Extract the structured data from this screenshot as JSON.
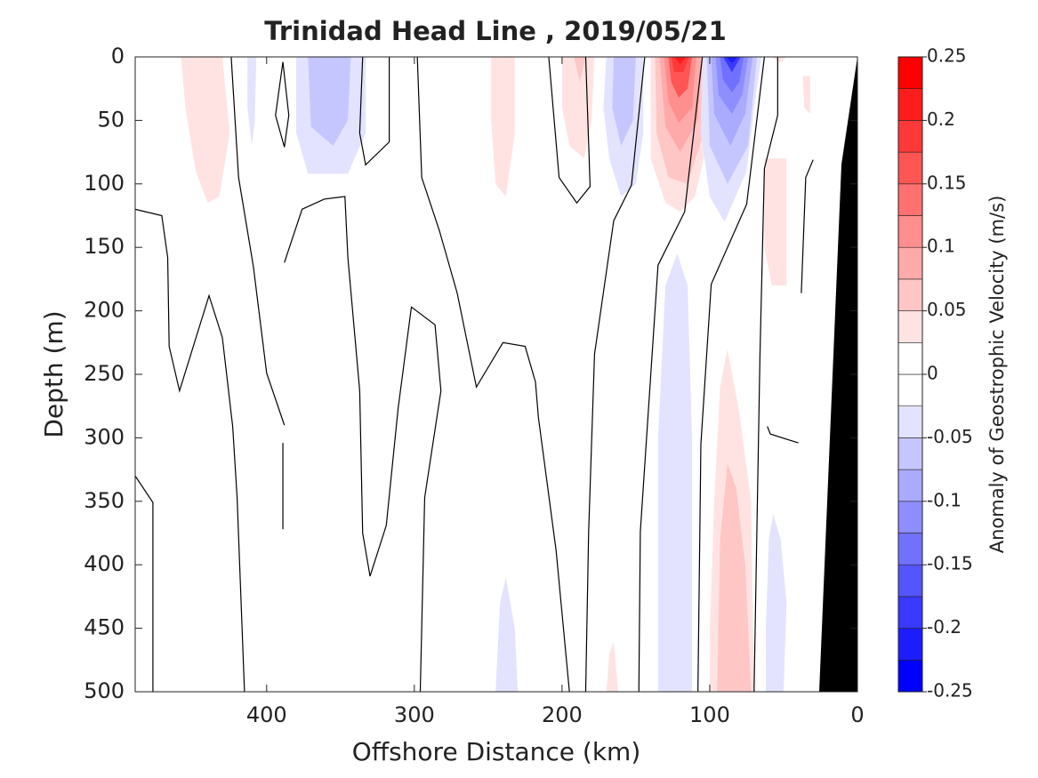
{
  "chart_data": {
    "type": "contour",
    "title": "Trinidad Head Line , 2019/05/21",
    "x_label": "Offshore Distance (km)",
    "y_label": "Depth (m)",
    "xlim": [
      489,
      0
    ],
    "xticks": [
      400,
      300,
      200,
      100,
      0
    ],
    "ylim": [
      500,
      0
    ],
    "yticks": [
      0,
      50,
      100,
      150,
      200,
      250,
      300,
      350,
      400,
      450,
      500
    ],
    "colorbar": {
      "label": "Anomaly of Geostrophic Velocity (m/s)",
      "levels": [
        -0.25,
        -0.225,
        -0.2,
        -0.175,
        -0.15,
        -0.125,
        -0.1,
        -0.075,
        -0.05,
        -0.025,
        0,
        0.025,
        0.05,
        0.075,
        0.1,
        0.125,
        0.15,
        0.175,
        0.2,
        0.225,
        0.25
      ],
      "colors": [
        "#0000ff",
        "#1c1cff",
        "#3939ff",
        "#5555ff",
        "#7171ff",
        "#8e8eff",
        "#aaaaff",
        "#c6c6ff",
        "#e3e3ff",
        "#ffffff",
        "#ffffff",
        "#ffe3e3",
        "#ffc6c6",
        "#ffaaaa",
        "#ff8e8e",
        "#ff7171",
        "#ff5555",
        "#ff3939",
        "#ff1c1c",
        "#ff0000"
      ],
      "ticks": [
        -0.25,
        -0.2,
        -0.15,
        -0.1,
        -0.05,
        0,
        0.05,
        0.1,
        0.15,
        0.2,
        0.25
      ]
    },
    "regions": [
      {
        "value": 0.03,
        "x": [
          458,
          430,
          425,
          432,
          440,
          448,
          455
        ],
        "y": [
          0,
          0,
          60,
          110,
          115,
          90,
          40
        ]
      },
      {
        "value": -0.03,
        "x": [
          413,
          407,
          408,
          410,
          413
        ],
        "y": [
          0,
          0,
          50,
          70,
          40
        ]
      },
      {
        "value": -0.03,
        "x": [
          380,
          333,
          333,
          345,
          372,
          380
        ],
        "y": [
          0,
          0,
          60,
          92,
          92,
          60
        ]
      },
      {
        "value": -0.06,
        "x": [
          372,
          343,
          345,
          355,
          370
        ],
        "y": [
          0,
          0,
          50,
          70,
          55
        ]
      },
      {
        "value": 0.03,
        "x": [
          248,
          232,
          232,
          238,
          245,
          248
        ],
        "y": [
          0,
          0,
          60,
          110,
          100,
          50
        ]
      },
      {
        "value": 0.03,
        "x": [
          200,
          178,
          180,
          185,
          195,
          200
        ],
        "y": [
          0,
          0,
          50,
          80,
          70,
          40
        ]
      },
      {
        "value": 0.06,
        "x": [
          192,
          184,
          188
        ],
        "y": [
          0,
          0,
          20
        ]
      },
      {
        "value": -0.03,
        "x": [
          170,
          145,
          145,
          150,
          160,
          168,
          172
        ],
        "y": [
          0,
          0,
          60,
          100,
          110,
          80,
          40
        ]
      },
      {
        "value": -0.06,
        "x": [
          165,
          150,
          152,
          160,
          166
        ],
        "y": [
          0,
          0,
          50,
          70,
          40
        ]
      },
      {
        "value": 0.03,
        "x": [
          140,
          100,
          100,
          110,
          120,
          130,
          140
        ],
        "y": [
          0,
          0,
          60,
          110,
          122,
          115,
          80
        ]
      },
      {
        "value": 0.06,
        "x": [
          137,
          103,
          104,
          115,
          128,
          136
        ],
        "y": [
          0,
          0,
          60,
          100,
          95,
          60
        ]
      },
      {
        "value": 0.09,
        "x": [
          134,
          106,
          108,
          120,
          130
        ],
        "y": [
          0,
          0,
          50,
          75,
          55
        ]
      },
      {
        "value": 0.12,
        "x": [
          131,
          109,
          112,
          121,
          128
        ],
        "y": [
          0,
          0,
          40,
          52,
          35
        ]
      },
      {
        "value": 0.15,
        "x": [
          128,
          112,
          115,
          121,
          126
        ],
        "y": [
          0,
          0,
          25,
          32,
          20
        ]
      },
      {
        "value": 0.18,
        "x": [
          126,
          114,
          118,
          124
        ],
        "y": [
          0,
          0,
          12,
          12
        ]
      },
      {
        "value": 0.21,
        "x": [
          124,
          116,
          120
        ],
        "y": [
          0,
          0,
          6
        ]
      },
      {
        "value": -0.03,
        "x": [
          105,
          65,
          70,
          75,
          90,
          100,
          106
        ],
        "y": [
          0,
          0,
          40,
          90,
          130,
          110,
          60
        ]
      },
      {
        "value": -0.06,
        "x": [
          102,
          68,
          74,
          88,
          100
        ],
        "y": [
          0,
          0,
          70,
          100,
          70
        ]
      },
      {
        "value": -0.09,
        "x": [
          99,
          71,
          76,
          86,
          97
        ],
        "y": [
          0,
          0,
          45,
          70,
          45
        ]
      },
      {
        "value": -0.12,
        "x": [
          96,
          74,
          78,
          85,
          94
        ],
        "y": [
          0,
          0,
          30,
          45,
          30
        ]
      },
      {
        "value": -0.15,
        "x": [
          93,
          77,
          80,
          85,
          91
        ],
        "y": [
          0,
          0,
          20,
          28,
          18
        ]
      },
      {
        "value": -0.18,
        "x": [
          91,
          79,
          85
        ],
        "y": [
          0,
          0,
          12
        ]
      },
      {
        "value": -0.21,
        "x": [
          89,
          81,
          85
        ],
        "y": [
          0,
          0,
          5
        ]
      },
      {
        "value": 0.03,
        "x": [
          58,
          48,
          52
        ],
        "y": [
          0,
          0,
          5
        ]
      },
      {
        "value": 0.03,
        "x": [
          37,
          32,
          32,
          36
        ],
        "y": [
          15,
          15,
          45,
          40
        ]
      },
      {
        "value": 0.03,
        "x": [
          63,
          48,
          48,
          58,
          63
        ],
        "y": [
          80,
          80,
          180,
          180,
          150
        ]
      },
      {
        "value": -0.03,
        "x": [
          135,
          112,
          112,
          115,
          122,
          130,
          135
        ],
        "y": [
          500,
          500,
          300,
          180,
          155,
          180,
          300
        ]
      },
      {
        "value": 0.03,
        "x": [
          100,
          70,
          72,
          80,
          88,
          93,
          97,
          100
        ],
        "y": [
          500,
          500,
          350,
          280,
          230,
          260,
          350,
          450
        ]
      },
      {
        "value": 0.06,
        "x": [
          95,
          72,
          76,
          82,
          88,
          93
        ],
        "y": [
          500,
          500,
          400,
          340,
          320,
          380
        ]
      },
      {
        "value": -0.03,
        "x": [
          62,
          50,
          48,
          52,
          57,
          60,
          62
        ],
        "y": [
          500,
          500,
          430,
          380,
          360,
          380,
          450
        ]
      },
      {
        "value": -0.03,
        "x": [
          245,
          230,
          232,
          238,
          242
        ],
        "y": [
          500,
          500,
          450,
          410,
          430
        ]
      },
      {
        "value": 0.03,
        "x": [
          170,
          162,
          165,
          168
        ],
        "y": [
          500,
          500,
          460,
          470
        ]
      }
    ],
    "lines": [
      {
        "x": [
          489,
          471,
          467,
          466,
          459,
          439,
          430,
          423,
          420,
          415
        ],
        "y": [
          120,
          125,
          158,
          228,
          263,
          188,
          221,
          291,
          347,
          500
        ]
      },
      {
        "x": [
          489,
          477,
          477,
          477,
          477
        ],
        "y": [
          330,
          351,
          390,
          446,
          500
        ]
      },
      {
        "x": [
          424,
          419,
          409,
          400,
          388
        ],
        "y": [
          0,
          95,
          165,
          249,
          290
        ]
      },
      {
        "x": [
          389,
          389
        ],
        "y": [
          304,
          372
        ]
      },
      {
        "x": [
          389,
          394,
          388,
          385,
          389
        ],
        "y": [
          4,
          46,
          71,
          46,
          4
        ]
      },
      {
        "x": [
          388,
          376,
          361,
          347,
          345,
          337,
          335,
          330,
          319,
          311,
          302,
          286,
          282,
          293,
          296
        ],
        "y": [
          162,
          120,
          112,
          110,
          158,
          263,
          375,
          409,
          369,
          277,
          197,
          211,
          263,
          347,
          500
        ]
      },
      {
        "x": [
          335,
          337,
          333,
          317,
          317
        ],
        "y": [
          0,
          60,
          85,
          67,
          0
        ]
      },
      {
        "x": [
          298,
          295,
          283,
          271,
          258,
          240,
          225,
          218,
          216,
          204,
          195
        ],
        "y": [
          0,
          95,
          137,
          186,
          260,
          225,
          228,
          256,
          284,
          389,
          500
        ]
      },
      {
        "x": [
          209,
          202,
          190,
          181,
          184
        ],
        "y": [
          0,
          95,
          115,
          102,
          0
        ]
      },
      {
        "x": [
          184,
          182,
          178,
          165,
          153,
          144
        ],
        "y": [
          500,
          374,
          234,
          129,
          101,
          0
        ]
      },
      {
        "x": [
          148,
          147,
          135,
          117,
          105
        ],
        "y": [
          500,
          374,
          164,
          122,
          0
        ]
      },
      {
        "x": [
          108,
          106,
          99,
          75,
          63
        ],
        "y": [
          500,
          305,
          179,
          116,
          0
        ]
      },
      {
        "x": [
          54,
          54,
          63,
          66,
          70
        ],
        "y": [
          0,
          46,
          88,
          235,
          500
        ]
      },
      {
        "x": [
          30,
          35,
          38
        ],
        "y": [
          81,
          95,
          186
        ]
      },
      {
        "x": [
          61,
          59,
          40
        ],
        "y": [
          291,
          297,
          304
        ]
      }
    ]
  }
}
